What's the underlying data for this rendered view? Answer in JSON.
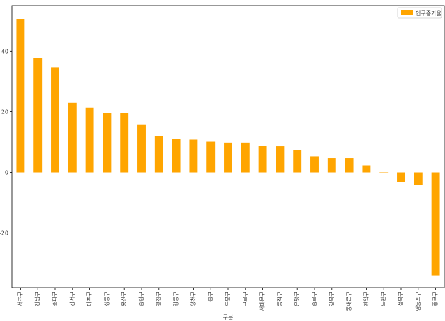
{
  "chart_data": {
    "type": "bar",
    "title": "",
    "xlabel": "구분",
    "ylabel": "",
    "categories": [
      "서초구",
      "강남구",
      "송파구",
      "강서구",
      "마포구",
      "성동구",
      "용산구",
      "중랑구",
      "광진구",
      "강동구",
      "양천구",
      "중구",
      "도봉구",
      "구로구",
      "서대문구",
      "동작구",
      "은평구",
      "종로구",
      "강북구",
      "동대문구",
      "관악구",
      "노원구",
      "성북구",
      "영등포구",
      "종로구"
    ],
    "series": [
      {
        "name": "인구증가율",
        "values": [
          50.5,
          37.7,
          34.7,
          22.9,
          21.3,
          19.6,
          19.5,
          15.8,
          12.0,
          11.0,
          10.8,
          10.1,
          9.8,
          9.8,
          8.7,
          8.6,
          7.3,
          5.3,
          4.7,
          4.7,
          2.3,
          -0.2,
          -3.3,
          -4.2,
          -34.0
        ]
      }
    ],
    "ylim": [
      -38,
      55
    ],
    "yticks": [
      -20,
      0,
      20,
      40
    ],
    "bar_color": "#FFA500",
    "grid": false,
    "legend_position": "top-right"
  }
}
